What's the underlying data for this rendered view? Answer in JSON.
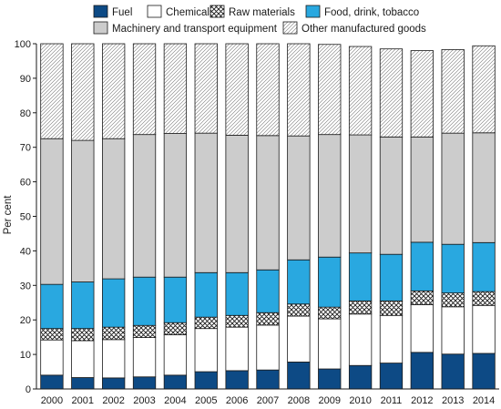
{
  "chart_data": {
    "type": "bar",
    "stacked": true,
    "title": "",
    "xlabel": "",
    "ylabel": "Per cent",
    "ylim": [
      0,
      100
    ],
    "yticks": [
      0,
      10,
      20,
      30,
      40,
      50,
      60,
      70,
      80,
      90,
      100
    ],
    "grid": false,
    "legend_position": "top",
    "categories": [
      "2000",
      "2001",
      "2002",
      "2003",
      "2004",
      "2005",
      "2006",
      "2007",
      "2008",
      "2009",
      "2010",
      "2011",
      "2012",
      "2013",
      "2014"
    ],
    "series": [
      {
        "name": "Fuel",
        "color": "#0d4a85",
        "pattern": "solid",
        "values": [
          4.0,
          3.3,
          3.2,
          3.5,
          4.0,
          5.0,
          5.3,
          5.5,
          7.8,
          5.8,
          6.8,
          7.5,
          10.6,
          10.1,
          10.3
        ]
      },
      {
        "name": "Chemicals",
        "color": "#ffffff",
        "pattern": "none",
        "values": [
          10.2,
          10.7,
          11.1,
          11.4,
          11.7,
          12.5,
          12.6,
          13.0,
          13.3,
          14.5,
          14.9,
          13.8,
          13.8,
          13.7,
          13.9
        ]
      },
      {
        "name": "Raw materials",
        "color": "#ffffff",
        "pattern": "crosshatch",
        "values": [
          3.3,
          3.5,
          3.6,
          3.5,
          3.5,
          3.3,
          3.4,
          3.6,
          3.5,
          3.4,
          3.8,
          4.2,
          4.0,
          4.0,
          4.0
        ]
      },
      {
        "name": "Food, drink, tobacco",
        "color": "#29a8e0",
        "pattern": "solid",
        "values": [
          12.8,
          13.5,
          14.0,
          14.0,
          13.2,
          12.9,
          12.4,
          12.4,
          12.8,
          14.5,
          13.9,
          13.5,
          14.1,
          14.1,
          14.2
        ]
      },
      {
        "name": "Machinery and transport equipment",
        "color": "#cccccc",
        "pattern": "solid",
        "values": [
          42.2,
          41.0,
          40.6,
          41.3,
          41.6,
          40.4,
          39.8,
          38.9,
          35.9,
          35.5,
          34.2,
          34.0,
          30.5,
          32.2,
          31.8
        ]
      },
      {
        "name": "Other manufactured goods",
        "color": "#ffffff",
        "pattern": "dots",
        "values": [
          27.5,
          28.0,
          27.5,
          26.3,
          26.0,
          25.9,
          26.5,
          26.6,
          26.7,
          26.1,
          25.6,
          25.5,
          25.0,
          24.2,
          25.2
        ]
      }
    ]
  },
  "legend": {
    "row1": [
      "Fuel",
      "Chemicals",
      "Raw materials",
      "Food, drink, tobacco"
    ],
    "row2": [
      "Machinery and transport equipment",
      "Other manufactured goods"
    ]
  }
}
